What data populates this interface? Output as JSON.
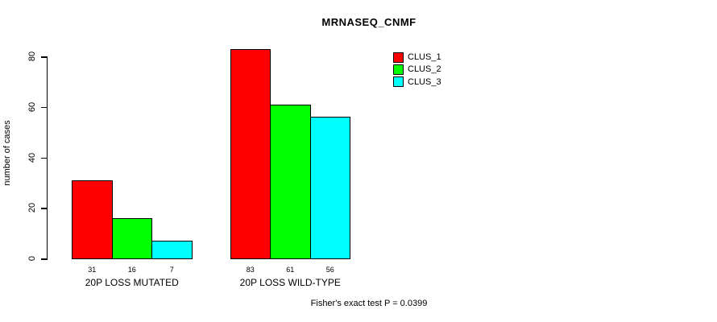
{
  "chart_data": {
    "type": "bar",
    "title": "MRNASEQ_CNMF",
    "xlabel": "",
    "ylabel": "number of cases",
    "categories": [
      "20P LOSS MUTATED",
      "20P LOSS WILD-TYPE"
    ],
    "series": [
      {
        "name": "CLUS_1",
        "color": "#ff0000",
        "values": [
          31,
          83
        ]
      },
      {
        "name": "CLUS_2",
        "color": "#00ff00",
        "values": [
          16,
          61
        ]
      },
      {
        "name": "CLUS_3",
        "color": "#00ffff",
        "values": [
          7,
          56
        ]
      }
    ],
    "bar_value_labels": [
      [
        "31",
        "16",
        "7"
      ],
      [
        "83",
        "61",
        "56"
      ]
    ],
    "yticks": [
      0,
      20,
      40,
      60,
      80
    ],
    "ylim": [
      0,
      83
    ],
    "grid": false,
    "legend_position": "top-right",
    "legend_entries": [
      "CLUS_1",
      "CLUS_2",
      "CLUS_3"
    ],
    "annotation": "Fisher's exact test P = 0.0399"
  },
  "colors": {
    "clus_1": "#ff0000",
    "clus_2": "#00ff00",
    "clus_3": "#00ffff",
    "axis": "#000000",
    "background": "#ffffff"
  }
}
